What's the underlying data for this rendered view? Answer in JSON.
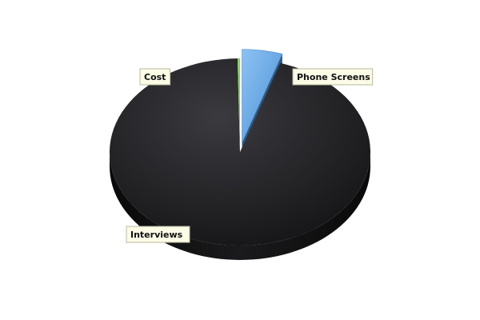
{
  "chart_data": {
    "type": "pie",
    "title": "",
    "style": "3d",
    "slices": [
      {
        "label": "Phone Screens",
        "value": 5.0,
        "color": "#5aa2e6"
      },
      {
        "label": "Interviews",
        "value": 94.7,
        "color": "#1c1c1e"
      },
      {
        "label": "Cost",
        "value": 0.3,
        "color": "#7ed957"
      }
    ]
  }
}
